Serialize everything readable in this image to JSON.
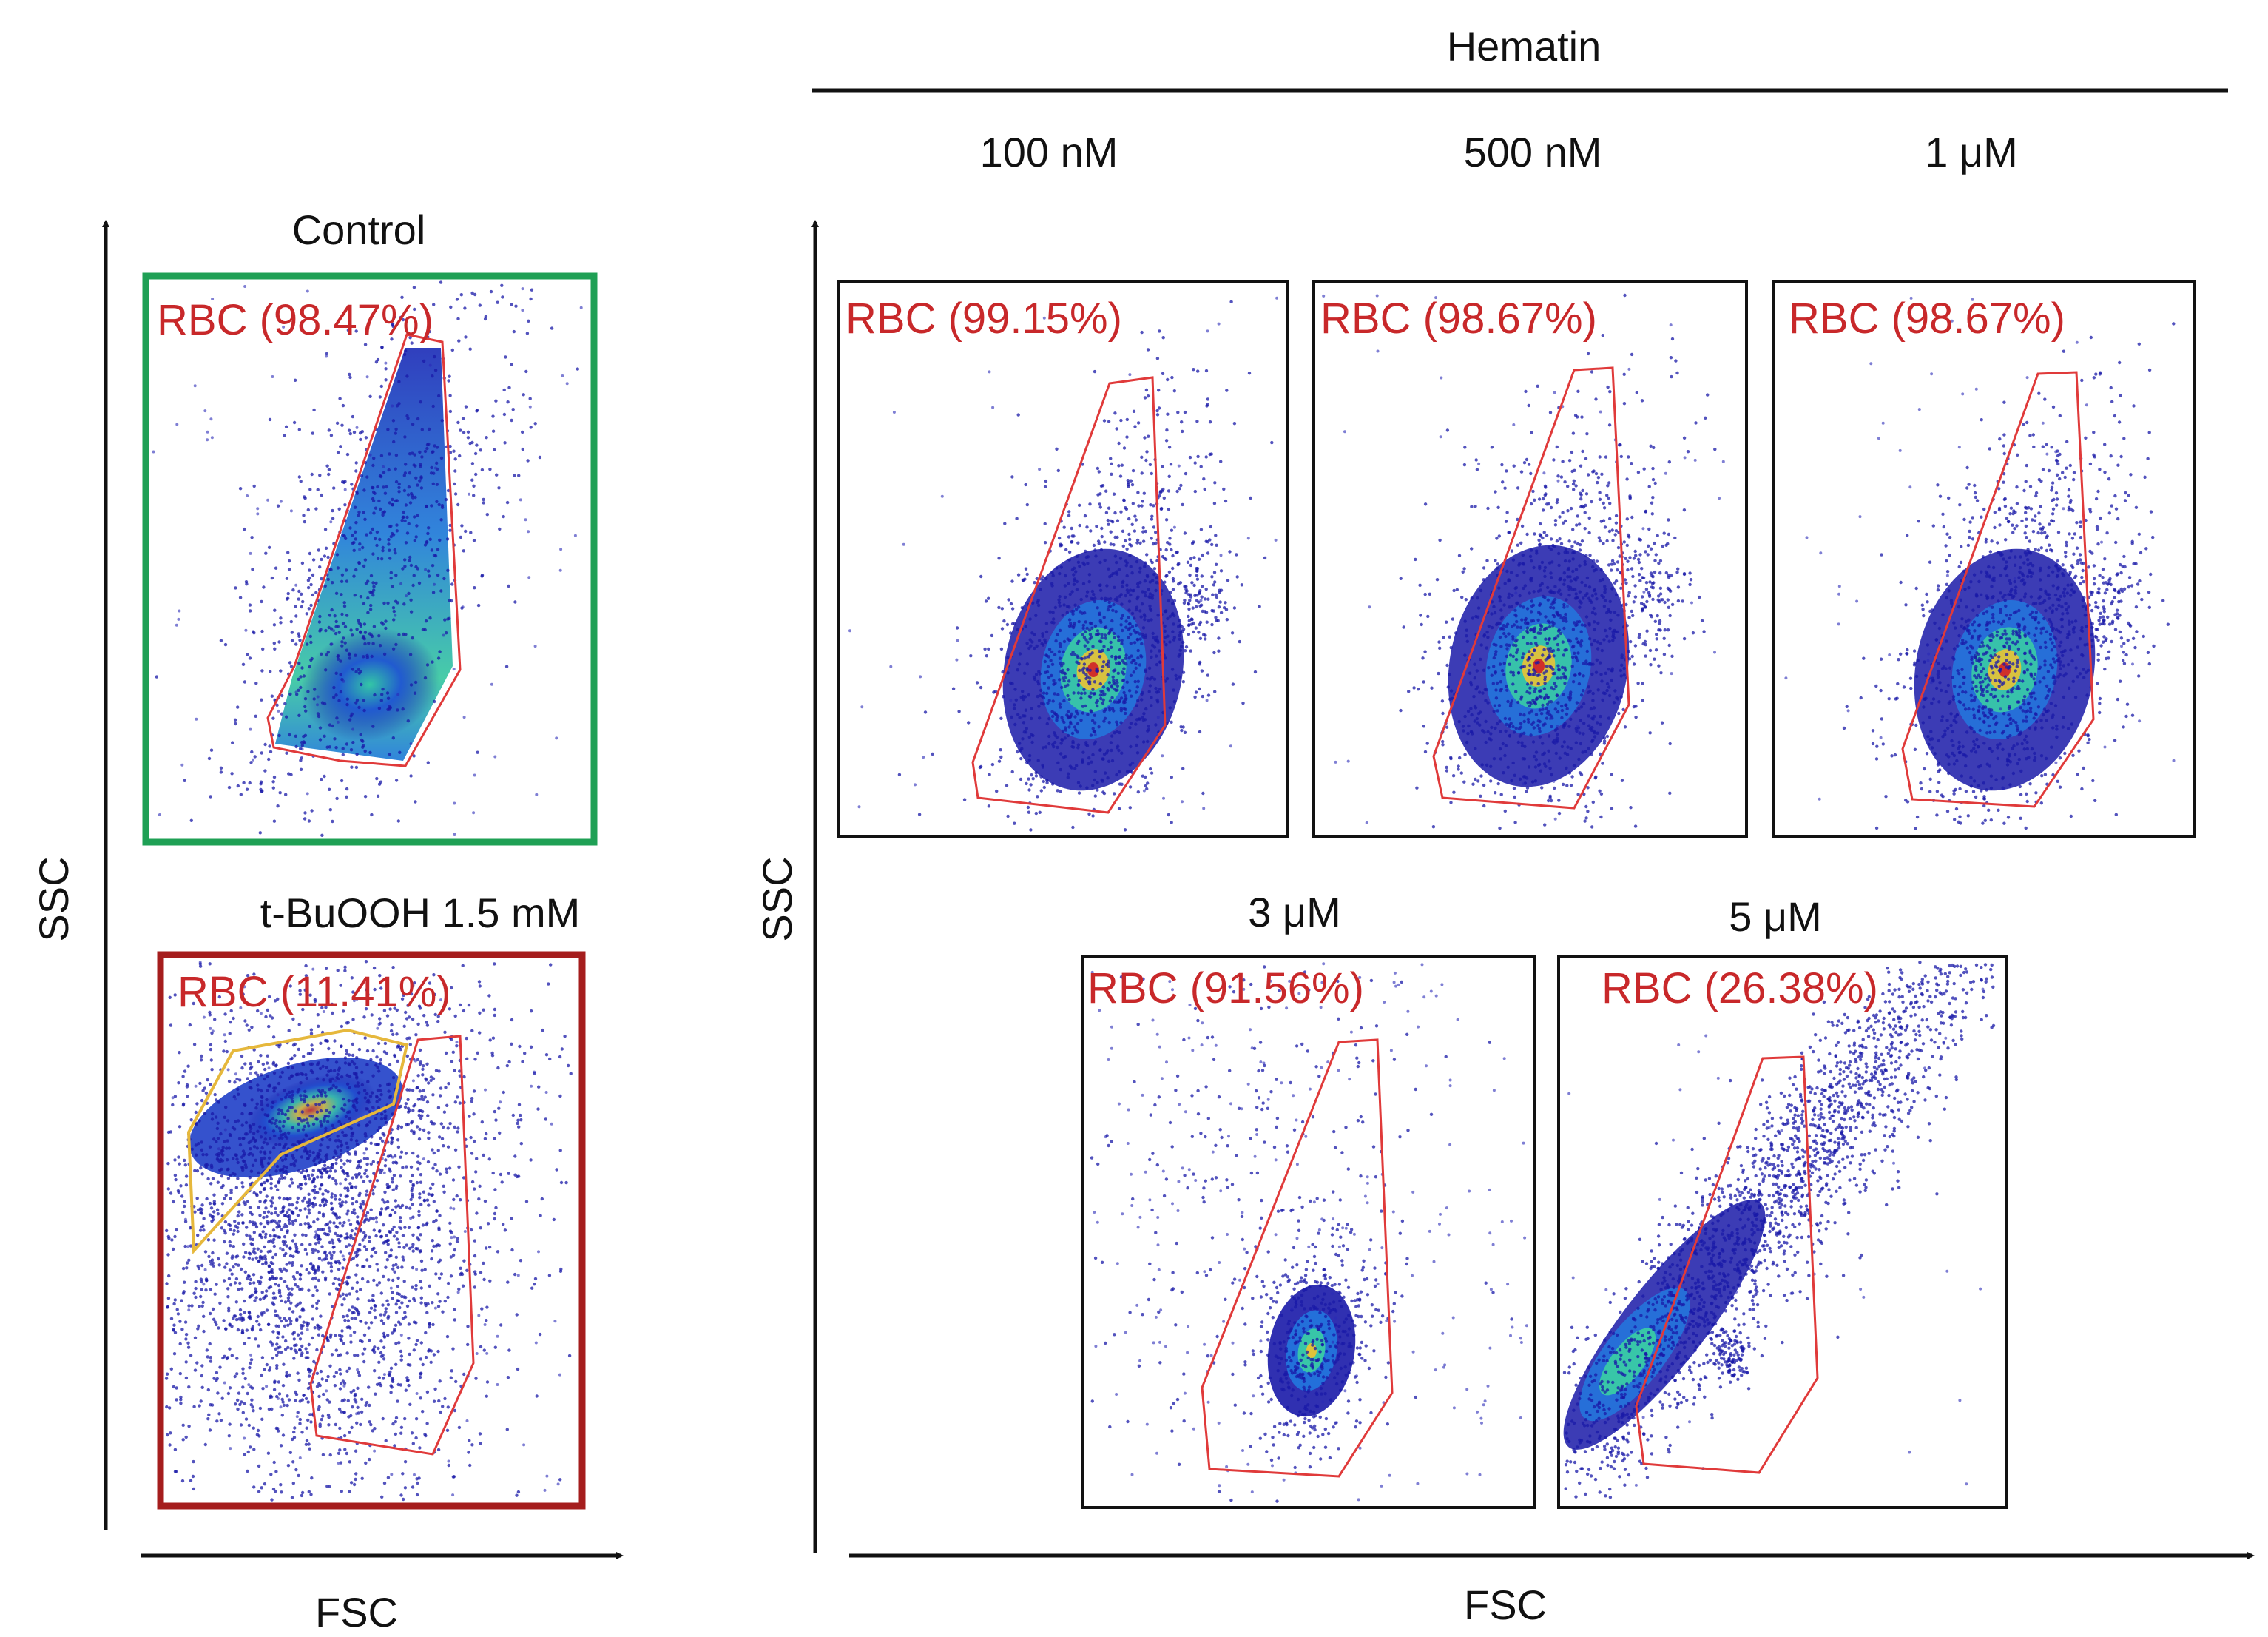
{
  "chart_data": {
    "type": "scatter",
    "title": "Hematin",
    "xlabel": "FSC",
    "ylabel": "SSC",
    "colors": {
      "control": "#1fa055",
      "tbuooh": "#a51d1d",
      "gate": "#e03a3a",
      "gate_label": "#c8282a",
      "alt_gate": "#e6b83c",
      "panel_border": "#111111",
      "density_low": "#1a1aa8",
      "density_mid": "#20c6b0",
      "density_high": "#d0302a"
    },
    "reference_panels": [
      {
        "id": "control",
        "header": "Control",
        "gate_label": "RBC (98.47%)",
        "rbc_percent": 98.47,
        "population": "triangular-cluster"
      },
      {
        "id": "tbuooh",
        "header": "t-BuOOH 1.5 mM",
        "gate_label": "RBC (11.41%)",
        "rbc_percent": 11.41,
        "population": "shifted-upper-left"
      }
    ],
    "hematin_panels": [
      {
        "id": "h100",
        "concentration": "100 nM",
        "gate_label": "RBC (99.15%)",
        "rbc_percent": 99.15,
        "population": "compact-oval"
      },
      {
        "id": "h500",
        "concentration": "500 nM",
        "gate_label": "RBC (98.67%)",
        "rbc_percent": 98.67,
        "population": "compact-oval"
      },
      {
        "id": "h1",
        "concentration": "1 μM",
        "gate_label": "RBC (98.67%)",
        "rbc_percent": 98.67,
        "population": "compact-oval"
      },
      {
        "id": "h3",
        "concentration": "3 μM",
        "gate_label": "RBC (91.56%)",
        "rbc_percent": 91.56,
        "population": "small-dense"
      },
      {
        "id": "h5",
        "concentration": "5 μM",
        "gate_label": "RBC (26.38%)",
        "rbc_percent": 26.38,
        "population": "diagonal-smear"
      }
    ]
  }
}
